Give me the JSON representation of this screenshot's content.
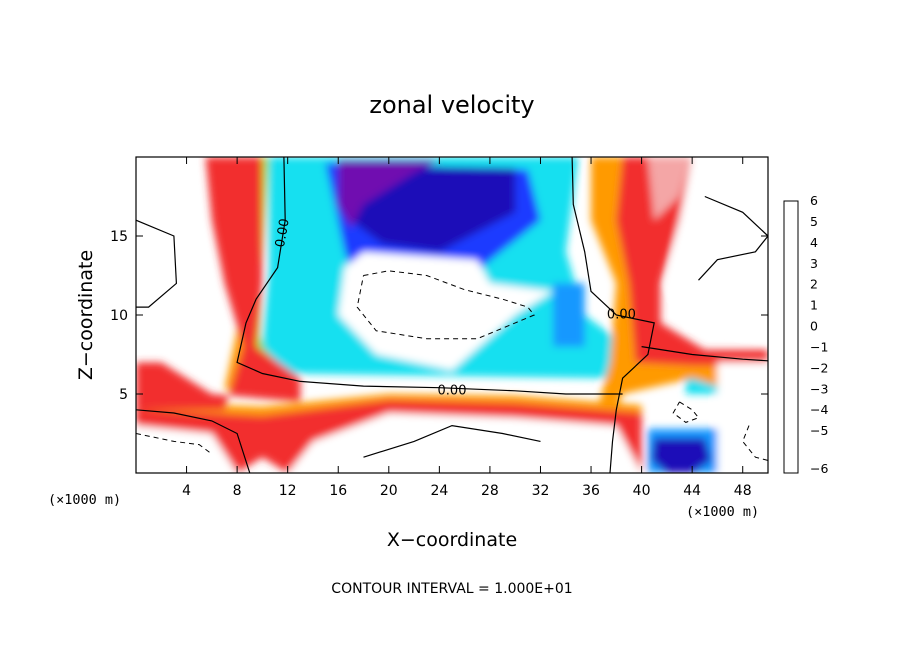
{
  "chart_data": {
    "type": "heatmap",
    "title": "zonal velocity",
    "xlabel": "X−coordinate",
    "ylabel": "Z−coordinate",
    "x_unit": "(×1000 m)",
    "z_unit": "(×1000 m)",
    "xlim": [
      0,
      50
    ],
    "ylim": [
      0,
      20
    ],
    "x_ticks": [
      4,
      8,
      12,
      16,
      20,
      24,
      28,
      32,
      36,
      40,
      44,
      48
    ],
    "y_ticks": [
      5,
      10,
      15
    ],
    "colorbar": {
      "levels": [
        6,
        5,
        4,
        3,
        2,
        1,
        0,
        -1,
        -2,
        -3,
        -4,
        -5,
        -6
      ],
      "level_labels": [
        "6",
        "5",
        "4",
        "3",
        "2",
        "1",
        "0",
        "−1",
        "−2",
        "−3",
        "−4",
        "−5",
        "−6"
      ],
      "colors": [
        "#f4a6a6",
        "#f22e2e",
        "#ff3c00",
        "#ff9a00",
        "#f8e600",
        "#a0e000",
        "#22d000",
        "#18d8a0",
        "#18e0f0",
        "#1898ff",
        "#1a3aff",
        "#1a10b8",
        "#7010b0"
      ]
    },
    "contour_labels": [
      "0.00",
      "0.00",
      "0.00"
    ],
    "contour_interval": "CONTOUR INTERVAL = 1.000E+01",
    "features": [
      {
        "label": "left positive jet",
        "x_range": [
          3,
          9
        ],
        "z_range": [
          7,
          20
        ],
        "value": 5
      },
      {
        "label": "negative core aloft",
        "x_range": [
          16,
          34
        ],
        "z_range": [
          14,
          19
        ],
        "value": -5.5
      },
      {
        "label": "right positive jet",
        "x_range": [
          35,
          42
        ],
        "z_range": [
          6,
          20
        ],
        "value": 5
      },
      {
        "label": "low-level positive layer",
        "x_range": [
          0,
          40
        ],
        "z_range": [
          0.5,
          4
        ],
        "value": 5
      },
      {
        "label": "low-level negative cell",
        "x_range": [
          40,
          46
        ],
        "z_range": [
          0,
          2
        ],
        "value": -5
      }
    ]
  }
}
